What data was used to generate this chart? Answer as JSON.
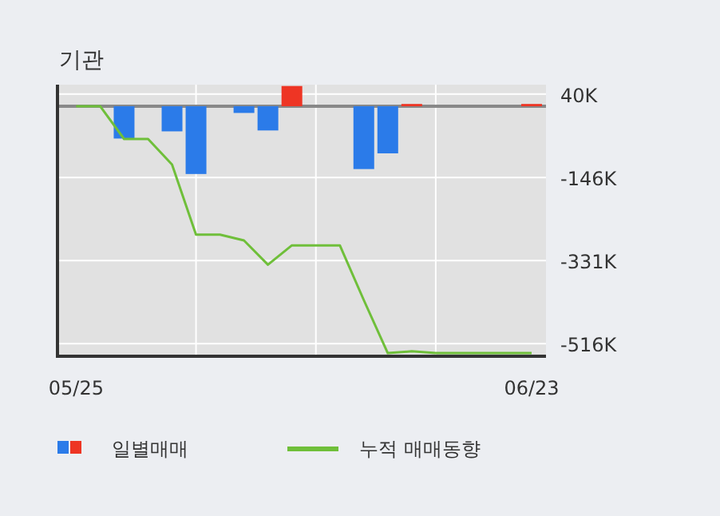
{
  "chart_data": {
    "type": "bar",
    "title": "기관",
    "categories": [
      "05/25",
      null,
      null,
      null,
      null,
      null,
      null,
      null,
      null,
      null,
      null,
      null,
      null,
      null,
      null,
      null,
      null,
      null,
      null,
      "06/23"
    ],
    "ylim": [
      -544,
      61
    ],
    "yticks": [
      {
        "value": 40,
        "label": "40K"
      },
      {
        "value": -146,
        "label": "-146K"
      },
      {
        "value": -331,
        "label": "-331K"
      },
      {
        "value": -516,
        "label": "-516K"
      }
    ],
    "series": [
      {
        "name": "일별매매",
        "colors": [
          "#2b7be9",
          "#2b7be9",
          "#2b7be9",
          "#2b7be9",
          "#2b7be9",
          "#2b7be9",
          "#2b7be9",
          "#2b7be9",
          "#2b7be9",
          "#ee3524",
          "#2b7be9",
          "#2b7be9",
          "#2b7be9",
          "#2b7be9",
          "#ee3524",
          "#2b7be9",
          "#2b7be9",
          "#2b7be9",
          "#2b7be9",
          "#ee3524"
        ],
        "base": [
          null,
          null,
          13,
          null,
          13,
          13,
          null,
          13,
          13,
          13,
          null,
          null,
          13,
          13,
          13,
          null,
          null,
          null,
          null,
          13
        ],
        "values": [
          null,
          null,
          -72,
          null,
          -56,
          -151,
          null,
          -15,
          -54,
          45,
          null,
          null,
          -140,
          -105,
          5,
          null,
          null,
          null,
          null,
          5
        ]
      },
      {
        "name": "누적 매매동향",
        "type": "line",
        "color": "#6fbf3a",
        "values": [
          13,
          13,
          -60,
          -60,
          -117,
          -273,
          -273,
          -286,
          -340,
          -297,
          -297,
          -297,
          -419,
          -537,
          -533,
          -537,
          -537,
          -537,
          -537,
          -537
        ]
      }
    ],
    "ref_lines": [
      {
        "axis": "y",
        "value": 13,
        "color": "#888888"
      }
    ],
    "grid": true,
    "legend": "bottom"
  }
}
